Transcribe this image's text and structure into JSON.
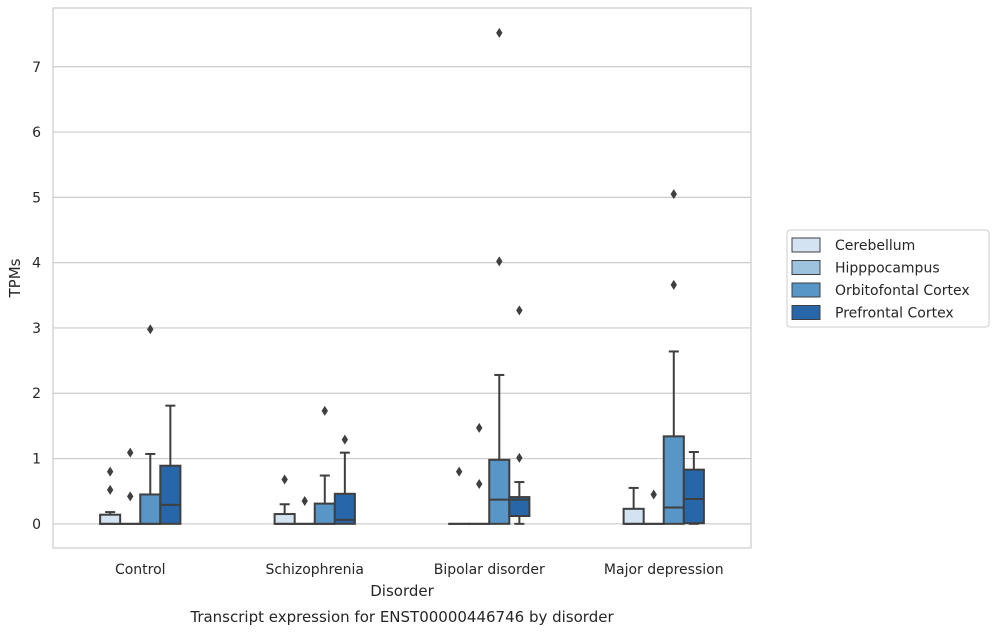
{
  "chart_data": {
    "type": "box",
    "title": "",
    "caption": "Transcript expression for ENST00000446746 by disorder",
    "xlabel": "Disorder",
    "ylabel": "TPMs",
    "ylim": [
      -0.37,
      7.9
    ],
    "yticks": [
      "0",
      "1",
      "2",
      "3",
      "4",
      "5",
      "6",
      "7"
    ],
    "categories": [
      "Control",
      "Schizophrenia",
      "Bipolar disorder",
      "Major depression"
    ],
    "grid": "horizontal",
    "legend_position": "right",
    "series": [
      {
        "name": "Cerebellum",
        "color": "#d4e3f1",
        "boxes": [
          {
            "q1": 0,
            "median": 0,
            "q3": 0.14,
            "whislo": 0,
            "whishi": 0.18,
            "fliers": [
              0.52,
              0.8
            ]
          },
          {
            "q1": 0,
            "median": 0,
            "q3": 0.15,
            "whislo": 0,
            "whishi": 0.3,
            "fliers": [
              0.68
            ]
          },
          {
            "q1": 0,
            "median": 0,
            "q3": 0,
            "whislo": 0,
            "whishi": 0,
            "fliers": [
              0.8
            ]
          },
          {
            "q1": 0,
            "median": 0,
            "q3": 0.23,
            "whislo": 0,
            "whishi": 0.55,
            "fliers": []
          }
        ]
      },
      {
        "name": "Hipppocampus",
        "color": "#9dc2de",
        "boxes": [
          {
            "q1": 0,
            "median": 0,
            "q3": 0,
            "whislo": 0,
            "whishi": 0,
            "fliers": [
              0.42,
              1.09
            ]
          },
          {
            "q1": 0,
            "median": 0,
            "q3": 0,
            "whislo": 0,
            "whishi": 0,
            "fliers": [
              0.35
            ]
          },
          {
            "q1": 0,
            "median": 0,
            "q3": 0,
            "whislo": 0,
            "whishi": 0,
            "fliers": [
              0.61,
              1.47
            ]
          },
          {
            "q1": 0,
            "median": 0,
            "q3": 0,
            "whislo": 0,
            "whishi": 0,
            "fliers": [
              0.45
            ]
          }
        ]
      },
      {
        "name": "Orbitofontal Cortex",
        "color": "#5796c6",
        "boxes": [
          {
            "q1": 0,
            "median": 0,
            "q3": 0.45,
            "whislo": 0,
            "whishi": 1.07,
            "fliers": [
              2.98
            ]
          },
          {
            "q1": 0,
            "median": 0,
            "q3": 0.31,
            "whislo": 0,
            "whishi": 0.74,
            "fliers": [
              1.73
            ]
          },
          {
            "q1": 0,
            "median": 0.37,
            "q3": 0.98,
            "whislo": 0,
            "whishi": 2.28,
            "fliers": [
              4.02,
              7.52
            ]
          },
          {
            "q1": 0,
            "median": 0.25,
            "q3": 1.34,
            "whislo": 0,
            "whishi": 2.64,
            "fliers": [
              3.66,
              5.05
            ]
          }
        ]
      },
      {
        "name": "Prefrontal Cortex",
        "color": "#2766a8",
        "boxes": [
          {
            "q1": 0,
            "median": 0.29,
            "q3": 0.89,
            "whislo": 0,
            "whishi": 1.81,
            "fliers": []
          },
          {
            "q1": 0,
            "median": 0.06,
            "q3": 0.46,
            "whislo": 0,
            "whishi": 1.09,
            "fliers": [
              1.29
            ]
          },
          {
            "q1": 0.12,
            "median": 0.37,
            "q3": 0.41,
            "whislo": 0,
            "whishi": 0.64,
            "fliers": [
              1.01,
              3.27
            ]
          },
          {
            "q1": 0.01,
            "median": 0.38,
            "q3": 0.83,
            "whislo": 0,
            "whishi": 1.1,
            "fliers": []
          }
        ]
      }
    ]
  }
}
